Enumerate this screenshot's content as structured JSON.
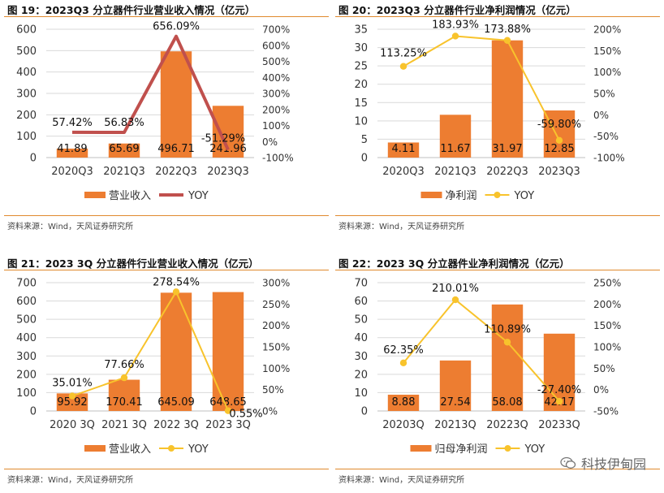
{
  "colors": {
    "bar": "#ed7d31",
    "line_red": "#c0504d",
    "line_yellow": "#f8c32c",
    "rule": "#e08a2e"
  },
  "panels": [
    {
      "title": "图 19：2023Q3 分立器件行业营业收入情况（亿元）",
      "source": "资料来源：Wind，天风证券研究所",
      "chart_data": {
        "type": "bar+line",
        "categories": [
          "2020Q3",
          "2021Q3",
          "2022Q3",
          "2023Q3"
        ],
        "bar_series": {
          "name": "营业收入",
          "values": [
            41.89,
            65.69,
            496.71,
            241.96
          ],
          "labels": [
            "41.89",
            "65.69",
            "496.71",
            "241.96"
          ]
        },
        "line_series": {
          "name": "YOY",
          "values": [
            57.42,
            56.83,
            656.09,
            -51.29
          ],
          "labels": [
            "57.42%",
            "56.83%",
            "656.09%",
            "-51.29%"
          ],
          "style": "thick-line",
          "color": "#c0504d"
        },
        "left_axis": {
          "min": 0,
          "max": 600,
          "ticks": [
            0,
            100,
            200,
            300,
            400,
            500,
            600
          ]
        },
        "right_axis": {
          "min": -100,
          "max": 700,
          "ticks": [
            "-100%",
            "0%",
            "100%",
            "200%",
            "300%",
            "400%",
            "500%",
            "600%",
            "700%"
          ]
        },
        "grid": true,
        "legend": "bottom"
      }
    },
    {
      "title": "图 20：2023Q3 分立器件行业净利润情况（亿元）",
      "source": "资料来源：Wind，天风证券研究所",
      "chart_data": {
        "type": "bar+line",
        "categories": [
          "2020Q3",
          "2021Q3",
          "2022Q3",
          "2023Q3"
        ],
        "bar_series": {
          "name": "净利润",
          "values": [
            4.11,
            11.67,
            31.97,
            12.85
          ],
          "labels": [
            "4.11",
            "11.67",
            "31.97",
            "12.85"
          ]
        },
        "line_series": {
          "name": "YOY",
          "values": [
            113.25,
            183.93,
            173.88,
            -59.8
          ],
          "labels": [
            "113.25%",
            "183.93%",
            "173.88%",
            "-59.80%"
          ],
          "style": "marker-line",
          "color": "#f8c32c"
        },
        "left_axis": {
          "min": 0,
          "max": 35,
          "ticks": [
            0,
            5,
            10,
            15,
            20,
            25,
            30,
            35
          ]
        },
        "right_axis": {
          "min": -100,
          "max": 200,
          "ticks": [
            "-100%",
            "-50%",
            "0%",
            "50%",
            "100%",
            "150%",
            "200%"
          ]
        },
        "grid": true,
        "legend": "bottom"
      }
    },
    {
      "title": "图 21：2023 3Q 分立器件行业营业收入情况（亿元）",
      "source": "资料来源：Wind，天风证券研究所",
      "chart_data": {
        "type": "bar+line",
        "categories": [
          "2020 3Q",
          "2021 3Q",
          "2022 3Q",
          "2023 3Q"
        ],
        "bar_series": {
          "name": "营业收入",
          "values": [
            95.92,
            170.41,
            645.09,
            648.65
          ],
          "labels": [
            "95.92",
            "170.41",
            "645.09",
            "648.65"
          ]
        },
        "line_series": {
          "name": "YOY",
          "values": [
            35.01,
            77.66,
            278.54,
            0.55
          ],
          "labels": [
            "35.01%",
            "77.66%",
            "278.54%",
            "0.55%"
          ],
          "style": "marker-line",
          "color": "#f8c32c"
        },
        "left_axis": {
          "min": 0,
          "max": 700,
          "ticks": [
            0,
            100,
            200,
            300,
            400,
            500,
            600,
            700
          ]
        },
        "right_axis": {
          "min": 0,
          "max": 300,
          "ticks": [
            "0%",
            "50%",
            "100%",
            "150%",
            "200%",
            "250%",
            "300%"
          ]
        },
        "grid": true,
        "legend": "bottom"
      }
    },
    {
      "title": "图 22：2023 3Q 分立器件业净利润情况（亿元）",
      "source": "资料来源：Wind，天风证券研究所",
      "chart_data": {
        "type": "bar+line",
        "categories": [
          "20203Q",
          "20213Q",
          "20223Q",
          "20233Q"
        ],
        "bar_series": {
          "name": "归母净利润",
          "values": [
            8.88,
            27.54,
            58.08,
            42.17
          ],
          "labels": [
            "8.88",
            "27.54",
            "58.08",
            "42.17"
          ]
        },
        "line_series": {
          "name": "YOY",
          "values": [
            62.35,
            210.01,
            110.89,
            -27.4
          ],
          "labels": [
            "62.35%",
            "210.01%",
            "110.89%",
            "-27.40%"
          ],
          "style": "marker-line",
          "color": "#f8c32c"
        },
        "left_axis": {
          "min": 0,
          "max": 70,
          "ticks": [
            0,
            10,
            20,
            30,
            40,
            50,
            60,
            70
          ]
        },
        "right_axis": {
          "min": -50,
          "max": 250,
          "ticks": [
            "-50%",
            "0%",
            "50%",
            "100%",
            "150%",
            "200%",
            "250%"
          ]
        },
        "grid": true,
        "legend": "bottom"
      }
    }
  ],
  "watermark": {
    "text": "科技伊甸园"
  }
}
